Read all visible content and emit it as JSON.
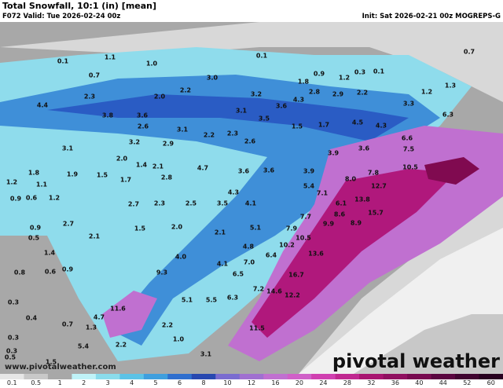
{
  "header": {
    "title": "Total Snowfall, 10:1 (in) [mean]",
    "valid": "F072 Valid: Tue 2026-02-24 00z",
    "init": "Init: Sat 2026-02-21 00z MOGREPS-G"
  },
  "map": {
    "labels": [
      "0.1",
      "1.1",
      "0.1",
      "0.7",
      "1.0",
      "0.7",
      "0.9",
      "1.2",
      "0.3",
      "0.1",
      "3.0",
      "1.8",
      "1.3",
      "2.2",
      "2.0",
      "3.2",
      "2.8",
      "2.9",
      "2.2",
      "1.2",
      "2.3",
      "4.3",
      "3.3",
      "4.4",
      "3.8",
      "3.6",
      "3.1",
      "3.6",
      "3.5",
      "6.3",
      "4.5",
      "2.6",
      "3.1",
      "1.5",
      "1.7",
      "4.3",
      "2.2",
      "2.3",
      "2.6",
      "6.6",
      "3.2",
      "2.9",
      "3.9",
      "3.6",
      "7.5",
      "3.1",
      "2.0",
      "1.4",
      "2.1",
      "4.7",
      "3.6",
      "3.6",
      "3.9",
      "7.8",
      "10.5",
      "1.8",
      "1.9",
      "1.5",
      "1.7",
      "2.8",
      "8.0",
      "12.7",
      "1.2",
      "1.1",
      "5.4",
      "7.1",
      "4.3",
      "0.9",
      "0.6",
      "1.2",
      "13.8",
      "6.1",
      "2.7",
      "2.3",
      "2.5",
      "3.5",
      "4.1",
      "15.7",
      "7.7",
      "8.6",
      "0.9",
      "2.7",
      "2.0",
      "5.1",
      "7.9",
      "9.9",
      "8.9",
      "2.1",
      "1.5",
      "2.1",
      "0.5",
      "4.8",
      "10.5",
      "13.6",
      "10.2",
      "1.4",
      "4.0",
      "6.4",
      "7.0",
      "9.3",
      "4.1",
      "6.5",
      "16.7",
      "0.8",
      "0.6",
      "0.9",
      "11.6",
      "4.7",
      "7.2",
      "6.3",
      "5.5",
      "5.1",
      "14.6",
      "12.2",
      "0.3",
      "0.4",
      "0.7",
      "1.3",
      "2.2",
      "1.0",
      "11.5",
      "0.3",
      "5.4",
      "2.2",
      "0.3",
      "1.5",
      "3.1",
      "0.5"
    ]
  },
  "watermark": "www.pivotalweather.com",
  "logo": "pivotal weather",
  "colorbar": {
    "labels": [
      "0.1",
      "0.5",
      "1",
      "2",
      "3",
      "4",
      "5",
      "6",
      "8",
      "10",
      "12",
      "16",
      "20",
      "24",
      "28",
      "32",
      "36",
      "40",
      "44",
      "52",
      "60"
    ],
    "colors": [
      "#e6e6e6",
      "#c8c8c8",
      "#a8a8a8",
      "#bff3f8",
      "#8adcec",
      "#5cc2e6",
      "#3f9fde",
      "#2f6fce",
      "#2848b0",
      "#7a6cd0",
      "#a070d0",
      "#c070d0",
      "#d060c8",
      "#d040b0",
      "#c02890",
      "#a81470",
      "#901060",
      "#780a50",
      "#5a0640",
      "#400430",
      "#280020"
    ]
  }
}
